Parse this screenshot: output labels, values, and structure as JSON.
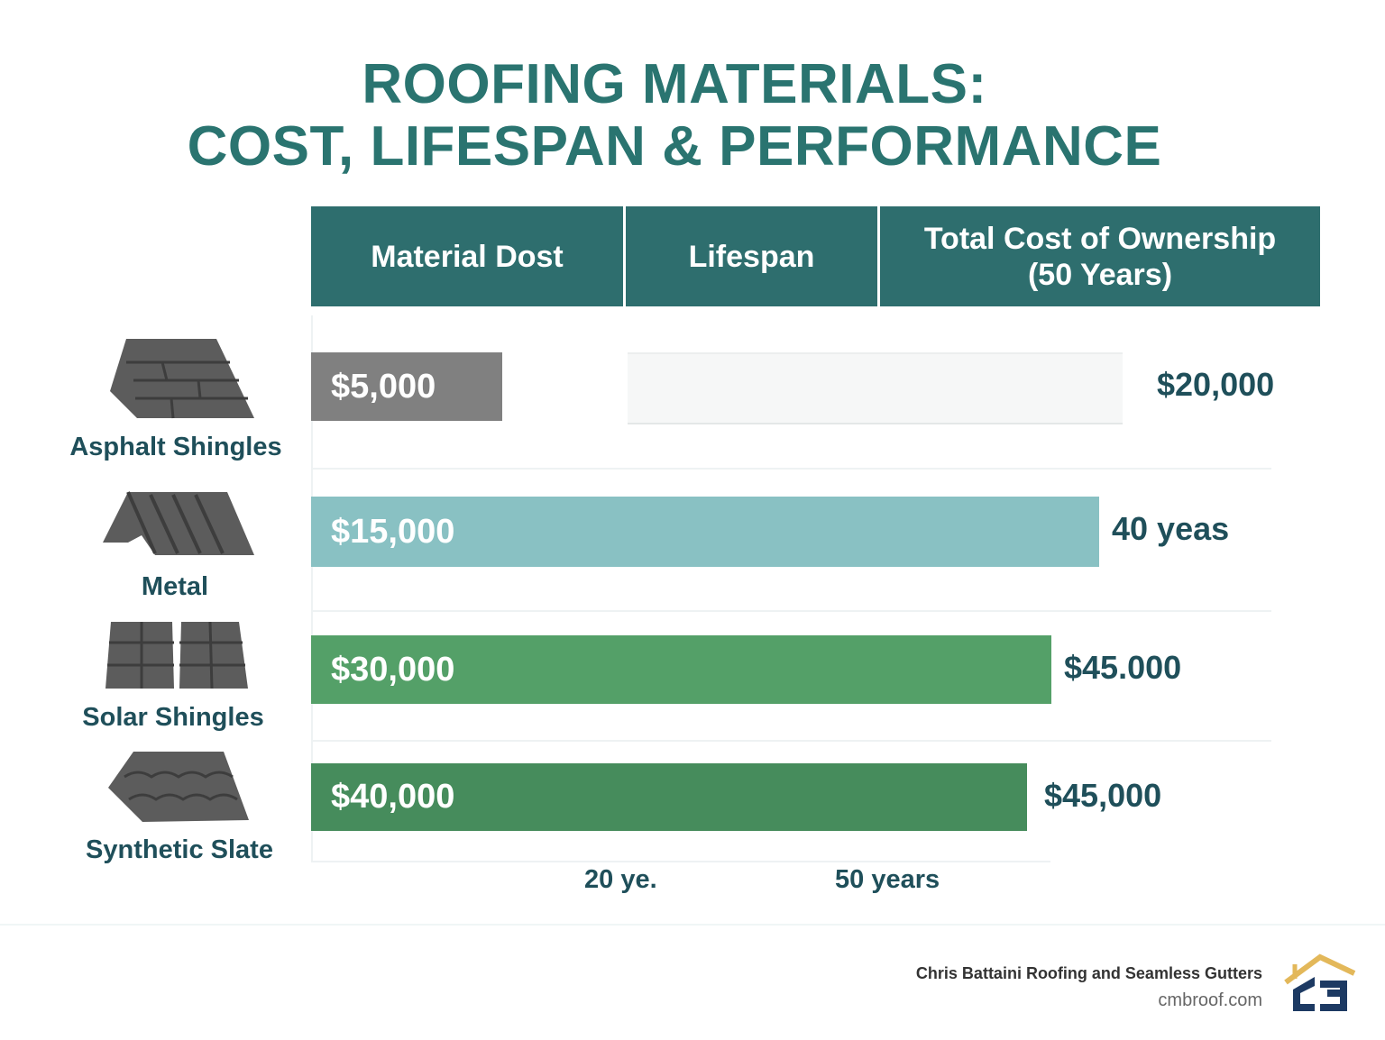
{
  "title": {
    "line1": "ROOFING MATERIALS:",
    "line2": "COST, LIFESPAN & PERFORMANCE"
  },
  "headers": [
    "Material Dost",
    "Lifespan",
    "Total Cost of Ownership",
    "(50 Years)"
  ],
  "chart_data": {
    "type": "bar",
    "categories": [
      "Asphalt Shingles",
      "Metal",
      "Solar Shingles",
      "Synthetic Slate"
    ],
    "series": [
      {
        "name": "Material Dost",
        "values": [
          5000,
          15000,
          30000,
          40000
        ],
        "labels": [
          "$5,000",
          "$15,000",
          "$30,000",
          "$40,000"
        ]
      }
    ],
    "side_labels": [
      "$20,000",
      "40 yeas",
      "$45.000",
      "$45,000"
    ],
    "x_tick_labels": [
      "20 ye.",
      "50 years"
    ],
    "colors": [
      "#808080",
      "#89c1c3",
      "#54a068",
      "#468c5c"
    ]
  },
  "footer": {
    "company": "Chris Battaini Roofing and Seamless Gutters",
    "website": "cmbroof.com",
    "logo_text": "CB"
  }
}
